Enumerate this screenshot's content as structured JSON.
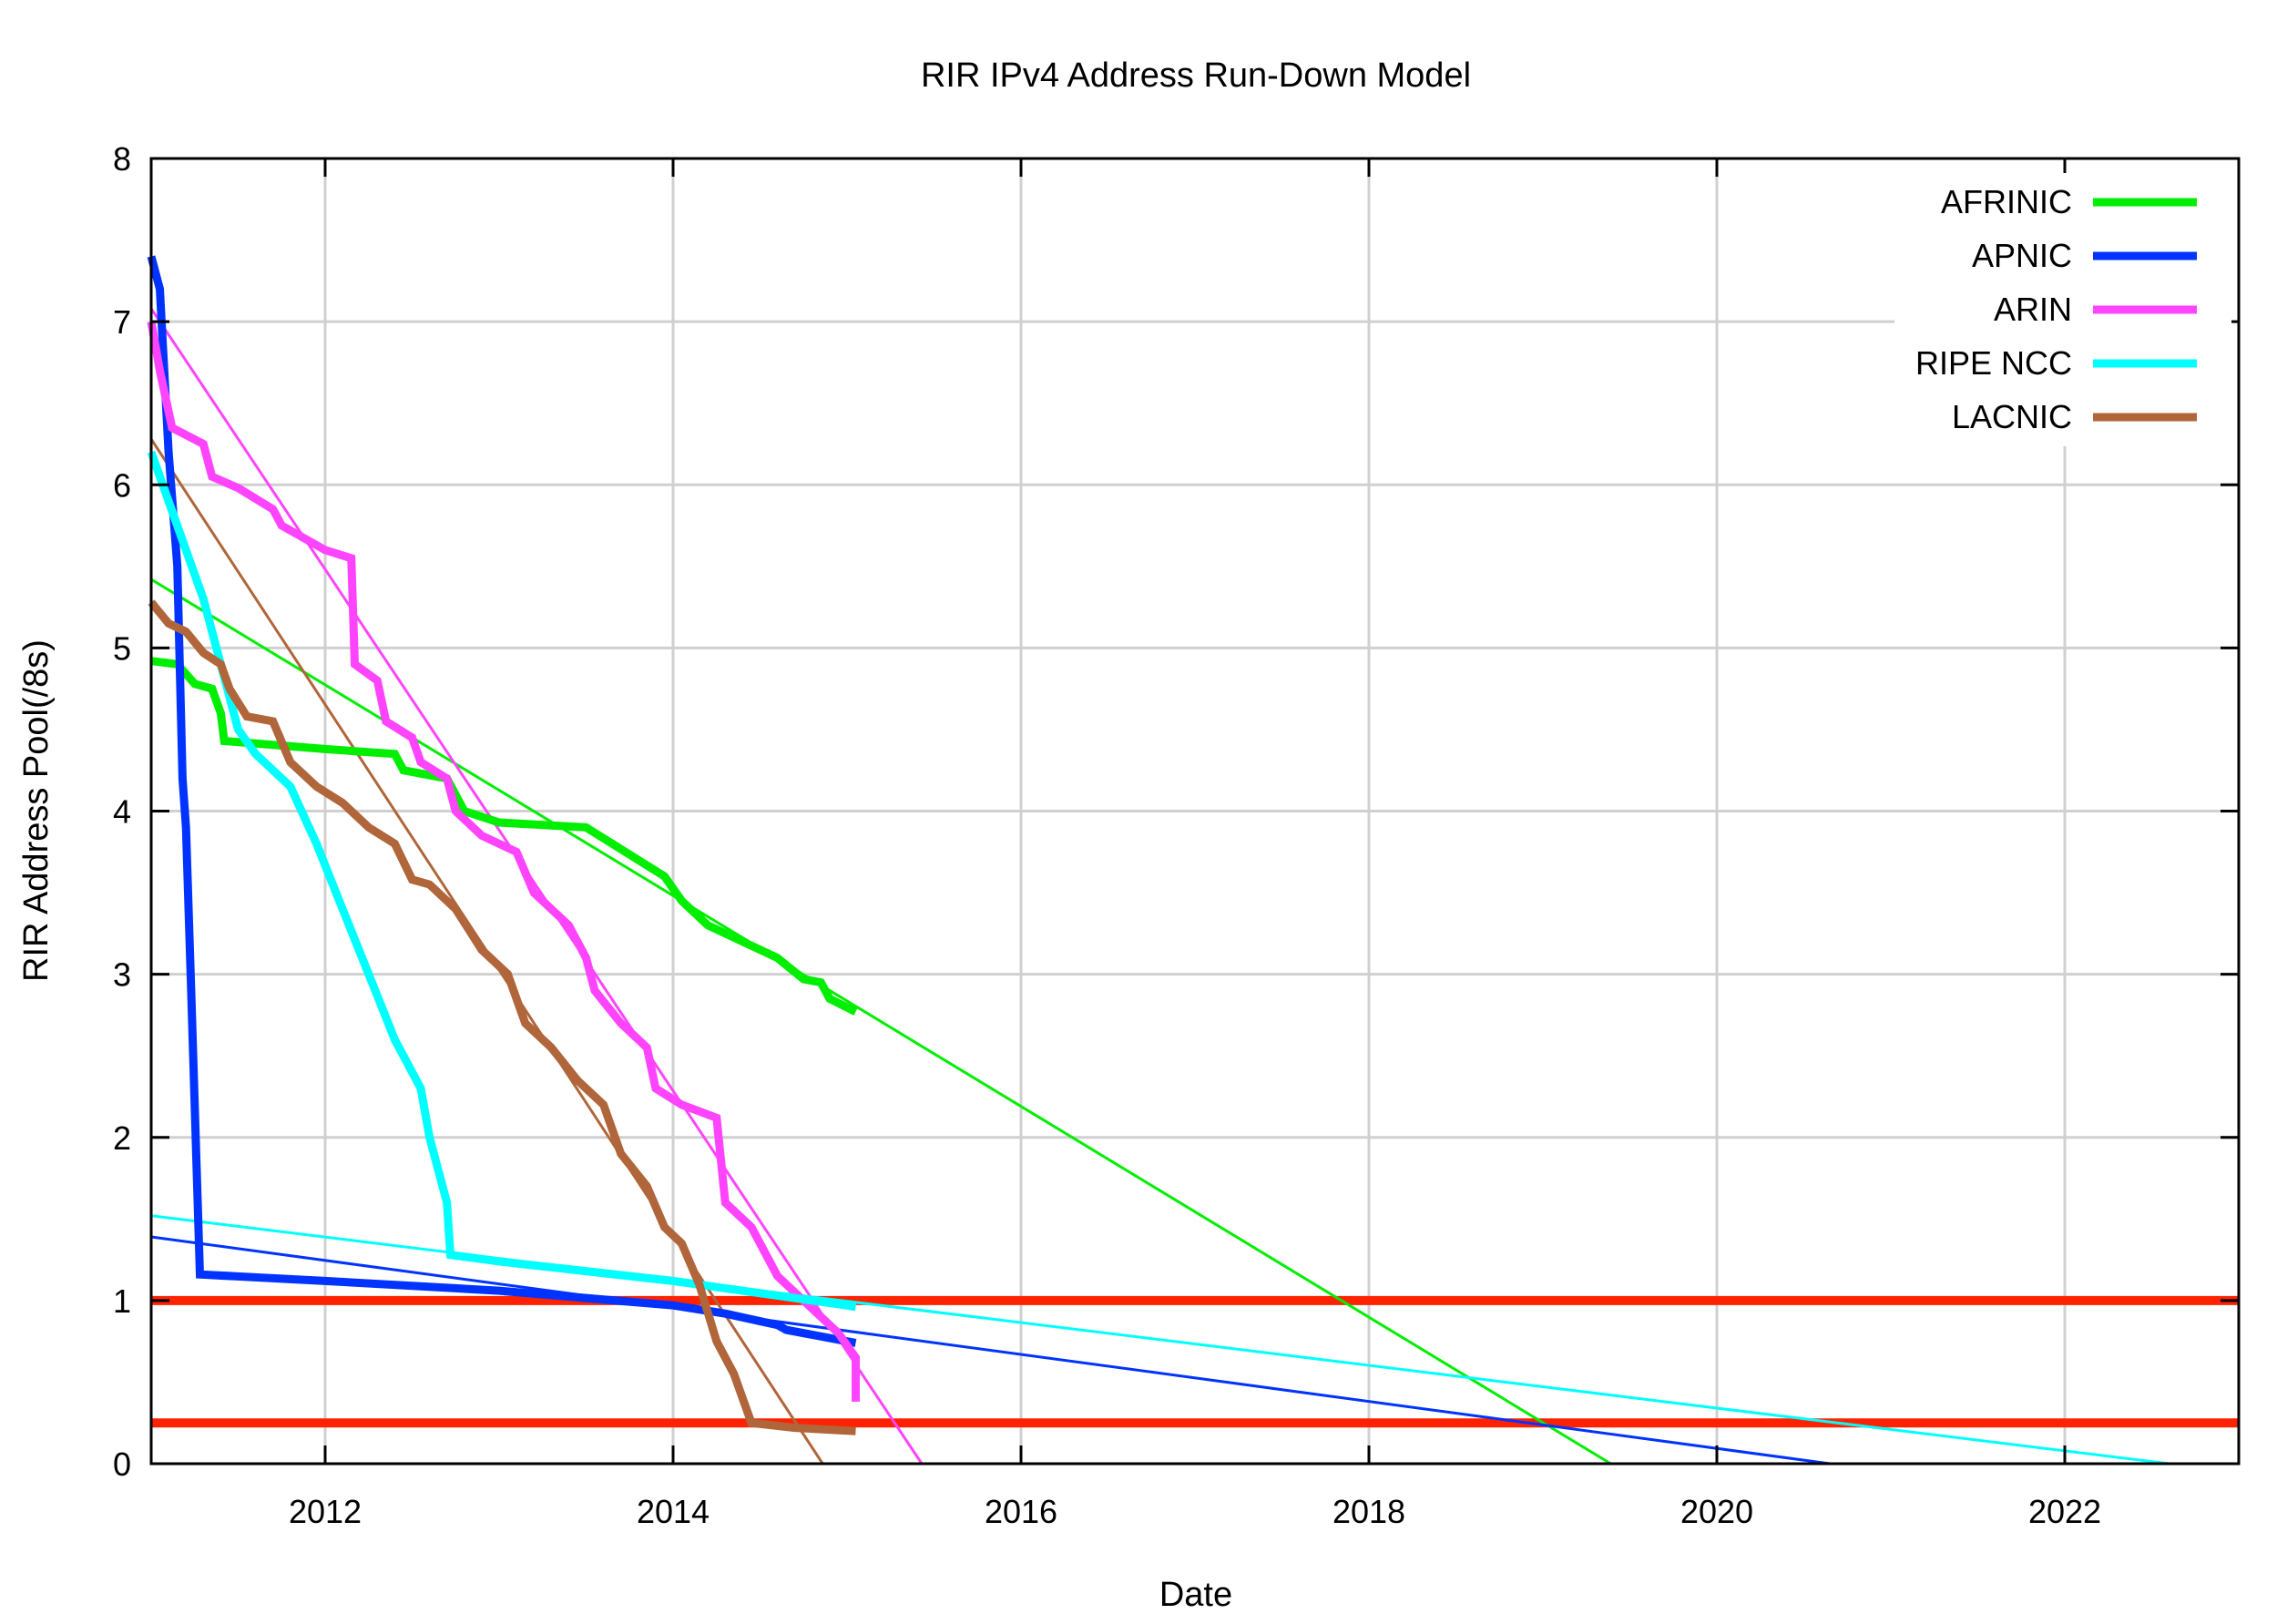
{
  "chart_data": {
    "type": "line",
    "title": "RIR IPv4 Address Run-Down Model",
    "xlabel": "Date",
    "ylabel": "RIR Address Pool(/8s)",
    "xlim": [
      2011,
      2023
    ],
    "ylim": [
      0,
      8
    ],
    "x_ticks": [
      "2012",
      "2014",
      "2016",
      "2018",
      "2020",
      "2022"
    ],
    "x_tick_values": [
      2012,
      2014,
      2016,
      2018,
      2020,
      2022
    ],
    "y_ticks": [
      "0",
      "1",
      "2",
      "3",
      "4",
      "5",
      "6",
      "7",
      "8"
    ],
    "grid": true,
    "legend_position": "top-right",
    "thresholds": [
      {
        "y": 1,
        "color": "#ff2200"
      },
      {
        "y": 0.25,
        "color": "#ff2200"
      }
    ],
    "series": [
      {
        "name": "AFRINIC",
        "color": "#00ee00",
        "points": [
          [
            2011,
            4.92
          ],
          [
            2011.15,
            4.9
          ],
          [
            2011.25,
            4.78
          ],
          [
            2011.35,
            4.75
          ],
          [
            2011.4,
            4.6
          ],
          [
            2011.42,
            4.43
          ],
          [
            2012,
            4.38
          ],
          [
            2012.4,
            4.35
          ],
          [
            2012.45,
            4.25
          ],
          [
            2012.7,
            4.2
          ],
          [
            2012.8,
            4.0
          ],
          [
            2013,
            3.93
          ],
          [
            2013.5,
            3.9
          ],
          [
            2013.65,
            3.8
          ],
          [
            2013.8,
            3.7
          ],
          [
            2013.95,
            3.6
          ],
          [
            2014.05,
            3.45
          ],
          [
            2014.2,
            3.3
          ],
          [
            2014.4,
            3.2
          ],
          [
            2014.6,
            3.1
          ],
          [
            2014.75,
            2.97
          ],
          [
            2014.85,
            2.95
          ],
          [
            2014.9,
            2.85
          ],
          [
            2015.05,
            2.77
          ]
        ],
        "fit": [
          [
            2011,
            5.42
          ],
          [
            2019.39,
            0
          ]
        ]
      },
      {
        "name": "APNIC",
        "color": "#0033ff",
        "points": [
          [
            2011,
            7.4
          ],
          [
            2011.05,
            7.2
          ],
          [
            2011.1,
            6.2
          ],
          [
            2011.15,
            5.5
          ],
          [
            2011.18,
            4.2
          ],
          [
            2011.2,
            3.9
          ],
          [
            2011.23,
            2.9
          ],
          [
            2011.27,
            1.5
          ],
          [
            2011.28,
            1.16
          ],
          [
            2012,
            1.12
          ],
          [
            2013,
            1.06
          ],
          [
            2014,
            0.97
          ],
          [
            2014.3,
            0.92
          ],
          [
            2014.6,
            0.85
          ],
          [
            2014.65,
            0.82
          ],
          [
            2015.05,
            0.74
          ]
        ],
        "fit": [
          [
            2011,
            1.39
          ],
          [
            2020.65,
            0
          ]
        ]
      },
      {
        "name": "ARIN",
        "color": "#ff44ff",
        "points": [
          [
            2011,
            7.0
          ],
          [
            2011.05,
            6.7
          ],
          [
            2011.12,
            6.35
          ],
          [
            2011.3,
            6.25
          ],
          [
            2011.35,
            6.05
          ],
          [
            2011.5,
            5.98
          ],
          [
            2011.7,
            5.85
          ],
          [
            2011.75,
            5.75
          ],
          [
            2012,
            5.6
          ],
          [
            2012.15,
            5.55
          ],
          [
            2012.17,
            4.9
          ],
          [
            2012.3,
            4.8
          ],
          [
            2012.35,
            4.55
          ],
          [
            2012.5,
            4.45
          ],
          [
            2012.55,
            4.3
          ],
          [
            2012.7,
            4.2
          ],
          [
            2012.75,
            4.0
          ],
          [
            2012.9,
            3.85
          ],
          [
            2013.1,
            3.75
          ],
          [
            2013.2,
            3.5
          ],
          [
            2013.4,
            3.3
          ],
          [
            2013.5,
            3.1
          ],
          [
            2013.55,
            2.9
          ],
          [
            2013.7,
            2.7
          ],
          [
            2013.85,
            2.55
          ],
          [
            2013.9,
            2.3
          ],
          [
            2014.05,
            2.2
          ],
          [
            2014.25,
            2.12
          ],
          [
            2014.3,
            1.6
          ],
          [
            2014.45,
            1.45
          ],
          [
            2014.6,
            1.15
          ],
          [
            2014.8,
            0.95
          ],
          [
            2014.95,
            0.8
          ],
          [
            2015.05,
            0.65
          ],
          [
            2015.05,
            0.38
          ]
        ],
        "fit": [
          [
            2011,
            7.08
          ],
          [
            2015.43,
            0
          ]
        ]
      },
      {
        "name": "RIPE NCC",
        "color": "#00ffff",
        "points": [
          [
            2011,
            6.2
          ],
          [
            2011.1,
            5.9
          ],
          [
            2011.2,
            5.6
          ],
          [
            2011.3,
            5.3
          ],
          [
            2011.4,
            4.9
          ],
          [
            2011.5,
            4.5
          ],
          [
            2011.6,
            4.35
          ],
          [
            2011.8,
            4.15
          ],
          [
            2011.95,
            3.8
          ],
          [
            2012.1,
            3.4
          ],
          [
            2012.25,
            3.0
          ],
          [
            2012.4,
            2.6
          ],
          [
            2012.55,
            2.3
          ],
          [
            2012.6,
            2.0
          ],
          [
            2012.7,
            1.6
          ],
          [
            2012.72,
            1.28
          ],
          [
            2013,
            1.24
          ],
          [
            2014,
            1.12
          ],
          [
            2015,
            0.97
          ],
          [
            2015.05,
            0.96
          ]
        ],
        "fit": [
          [
            2011,
            1.52
          ],
          [
            2022.6,
            0
          ]
        ]
      },
      {
        "name": "LACNIC",
        "color": "#b0663a",
        "points": [
          [
            2011,
            5.28
          ],
          [
            2011.1,
            5.15
          ],
          [
            2011.2,
            5.1
          ],
          [
            2011.3,
            4.97
          ],
          [
            2011.4,
            4.9
          ],
          [
            2011.45,
            4.75
          ],
          [
            2011.55,
            4.58
          ],
          [
            2011.7,
            4.55
          ],
          [
            2011.8,
            4.3
          ],
          [
            2011.95,
            4.15
          ],
          [
            2012.1,
            4.05
          ],
          [
            2012.25,
            3.9
          ],
          [
            2012.4,
            3.8
          ],
          [
            2012.5,
            3.58
          ],
          [
            2012.6,
            3.55
          ],
          [
            2012.75,
            3.4
          ],
          [
            2012.9,
            3.15
          ],
          [
            2013.05,
            3.0
          ],
          [
            2013.15,
            2.7
          ],
          [
            2013.3,
            2.55
          ],
          [
            2013.45,
            2.35
          ],
          [
            2013.6,
            2.2
          ],
          [
            2013.7,
            1.9
          ],
          [
            2013.85,
            1.7
          ],
          [
            2013.95,
            1.45
          ],
          [
            2014.05,
            1.35
          ],
          [
            2014.15,
            1.1
          ],
          [
            2014.25,
            0.75
          ],
          [
            2014.35,
            0.55
          ],
          [
            2014.45,
            0.25
          ],
          [
            2014.7,
            0.22
          ],
          [
            2015.05,
            0.2
          ]
        ],
        "fit": [
          [
            2011,
            6.28
          ],
          [
            2014.86,
            0
          ]
        ]
      }
    ]
  }
}
